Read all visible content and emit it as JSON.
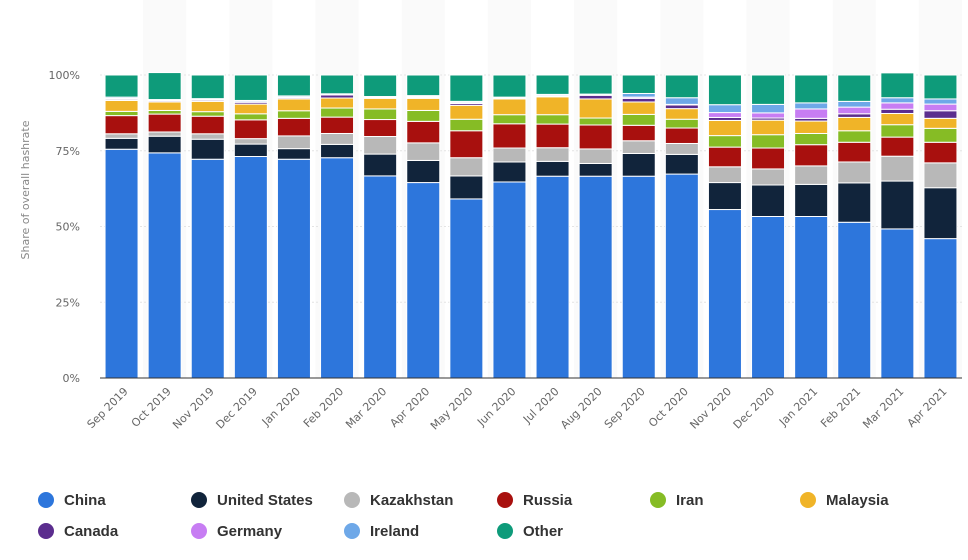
{
  "chart_data": {
    "type": "bar",
    "stacked": true,
    "ylabel": "Share of overall hashrate",
    "xlabel": "",
    "title": "",
    "ylim": [
      0,
      100
    ],
    "yticks": [
      "0%",
      "25%",
      "50%",
      "75%",
      "100%"
    ],
    "grid": "horizontal",
    "legend_position": "bottom",
    "categories": [
      "Sep 2019",
      "Oct 2019",
      "Nov 2019",
      "Dec 2019",
      "Jan 2020",
      "Feb 2020",
      "Mar 2020",
      "Apr 2020",
      "May 2020",
      "Jun 2020",
      "Jul 2020",
      "Aug 2020",
      "Sep 2020",
      "Oct 2020",
      "Nov 2020",
      "Dec 2020",
      "Jan 2021",
      "Feb 2021",
      "Mar 2021",
      "Apr 2021"
    ],
    "series": [
      {
        "name": "China",
        "color": "#2d76dc",
        "values": [
          75.5,
          74.3,
          72.2,
          73.1,
          72.2,
          72.7,
          66.7,
          64.5,
          59.1,
          64.7,
          66.6,
          66.6,
          66.6,
          67.3,
          55.6,
          53.3,
          53.3,
          51.4,
          49.2,
          46.0
        ]
      },
      {
        "name": "United States",
        "color": "#11243b",
        "values": [
          3.6,
          5.5,
          6.6,
          4.1,
          3.5,
          4.4,
          7.2,
          7.3,
          7.6,
          6.6,
          4.9,
          4.2,
          7.5,
          6.5,
          8.9,
          10.4,
          10.6,
          13.0,
          15.8,
          16.8
        ]
      },
      {
        "name": "Kazakhstan",
        "color": "#b8b8b8",
        "values": [
          1.5,
          1.4,
          1.8,
          1.8,
          4.2,
          3.6,
          5.8,
          5.8,
          6.0,
          4.6,
          4.5,
          4.8,
          4.2,
          3.6,
          5.2,
          5.3,
          6.1,
          6.9,
          8.2,
          8.2
        ]
      },
      {
        "name": "Russia",
        "color": "#a8100e",
        "values": [
          6.0,
          5.9,
          5.8,
          6.2,
          5.8,
          5.4,
          5.6,
          7.1,
          8.9,
          8.0,
          7.8,
          7.9,
          5.1,
          5.1,
          6.5,
          6.9,
          7.0,
          6.5,
          6.3,
          6.8
        ]
      },
      {
        "name": "Iran",
        "color": "#86bc25",
        "values": [
          1.4,
          1.2,
          1.5,
          2.0,
          2.5,
          3.0,
          3.5,
          3.6,
          3.8,
          3.0,
          3.1,
          2.3,
          3.6,
          2.9,
          3.8,
          4.4,
          3.7,
          3.8,
          4.1,
          4.6
        ]
      },
      {
        "name": "Malaysia",
        "color": "#f0b428",
        "values": [
          3.6,
          2.8,
          3.4,
          3.2,
          3.9,
          3.3,
          3.5,
          4.0,
          4.6,
          5.2,
          5.9,
          6.3,
          4.1,
          3.5,
          5.0,
          4.8,
          4.1,
          4.4,
          3.7,
          3.3
        ]
      },
      {
        "name": "Canada",
        "color": "#5b2d8e",
        "values": [
          0.4,
          0.4,
          0.4,
          0.6,
          0.4,
          1.0,
          0.3,
          0.3,
          0.6,
          0.2,
          0.2,
          1.2,
          1.2,
          1.2,
          1.0,
          0.7,
          0.9,
          1.2,
          1.4,
          2.5
        ]
      },
      {
        "name": "Germany",
        "color": "#c77df3",
        "values": [
          0.3,
          0.2,
          0.2,
          0.2,
          0.2,
          0.1,
          0.1,
          0.3,
          0.3,
          0.2,
          0.2,
          0.1,
          0.4,
          0.2,
          1.6,
          1.7,
          3.1,
          2.2,
          2.1,
          2.2
        ]
      },
      {
        "name": "Ireland",
        "color": "#6ea8e8",
        "values": [
          0.4,
          0.2,
          0.3,
          0.4,
          0.4,
          0.3,
          0.2,
          0.3,
          0.4,
          0.2,
          0.4,
          0.3,
          1.2,
          2.2,
          2.6,
          2.8,
          2.0,
          1.9,
          1.7,
          1.7
        ]
      },
      {
        "name": "Other",
        "color": "#0e9b7a",
        "values": [
          7.3,
          8.9,
          7.8,
          8.4,
          6.9,
          6.2,
          7.1,
          6.8,
          8.7,
          7.3,
          6.4,
          6.3,
          6.1,
          7.5,
          9.8,
          9.7,
          9.2,
          8.7,
          8.2,
          7.9
        ]
      }
    ]
  }
}
